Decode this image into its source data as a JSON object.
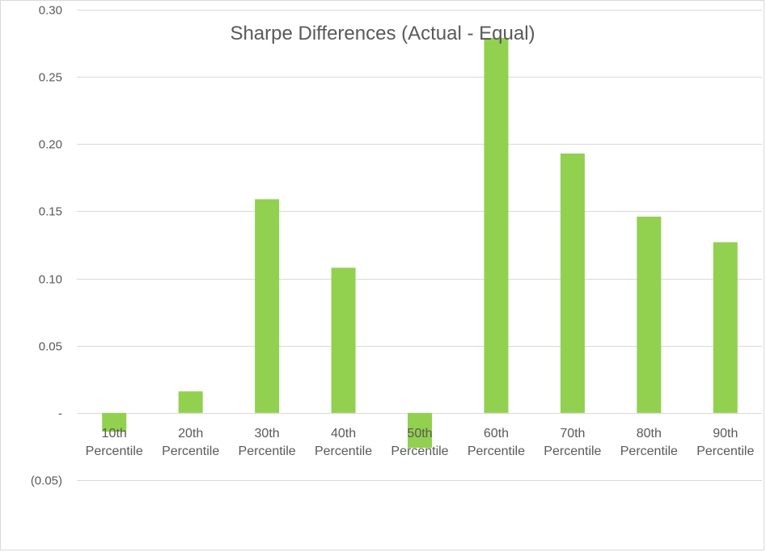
{
  "chart_data": {
    "type": "bar",
    "title": "Sharpe Differences (Actual - Equal)",
    "xlabel": "",
    "ylabel": "",
    "categories": [
      [
        "10th",
        "Percentile"
      ],
      [
        "20th",
        "Percentile"
      ],
      [
        "30th",
        "Percentile"
      ],
      [
        "40th",
        "Percentile"
      ],
      [
        "50th",
        "Percentile"
      ],
      [
        "60th",
        "Percentile"
      ],
      [
        "70th",
        "Percentile"
      ],
      [
        "80th",
        "Percentile"
      ],
      [
        "90th",
        "Percentile"
      ]
    ],
    "values": [
      -0.014,
      0.016,
      0.159,
      0.108,
      -0.026,
      0.279,
      0.193,
      0.146,
      0.127
    ],
    "ylim": [
      -0.05,
      0.3
    ],
    "yticks": [
      0.3,
      0.25,
      0.2,
      0.15,
      0.1,
      0.05,
      0,
      -0.05
    ],
    "ytick_labels": [
      "0.30",
      "0.25",
      "0.20",
      "0.15",
      "0.10",
      "0.05",
      "-",
      "(0.05)"
    ],
    "bar_color": "#92d050",
    "grid": true,
    "legend": "none"
  }
}
